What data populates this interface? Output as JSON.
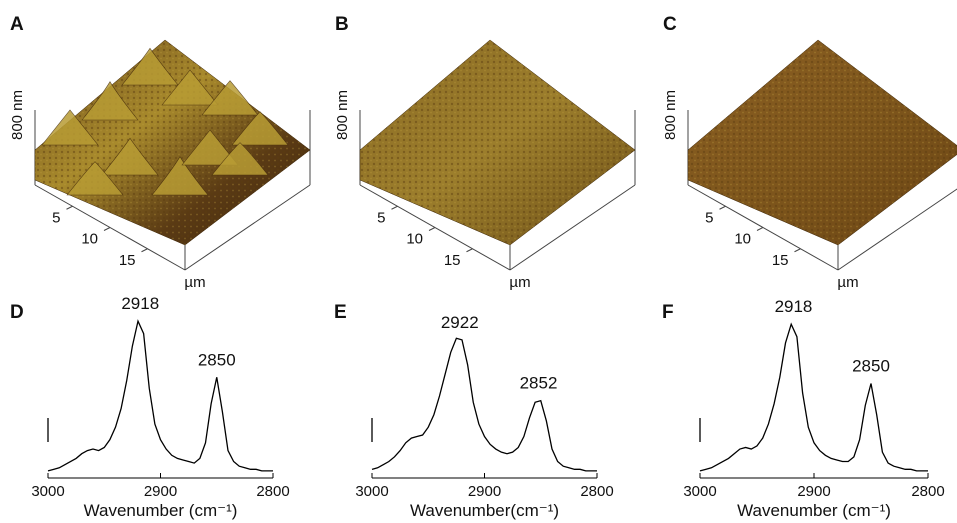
{
  "panels": [
    {
      "label": "A",
      "z_label": "800 nm",
      "axis_ticks": [
        5,
        10,
        15
      ],
      "axis_unit": "µm"
    },
    {
      "label": "B",
      "z_label": "800 nm",
      "axis_ticks": [
        5,
        10,
        15
      ],
      "axis_unit": "µm"
    },
    {
      "label": "C",
      "z_label": "800 nm",
      "axis_ticks": [
        5,
        10,
        15
      ],
      "axis_unit": "µm"
    }
  ],
  "chart_data": [
    {
      "type": "line",
      "label": "D",
      "x_label": "Wavenumber (cm⁻¹)",
      "color": "#000000",
      "xlim": [
        3000,
        2800
      ],
      "xticks": [
        3000,
        2900,
        2800
      ],
      "ylim": [
        0,
        1
      ],
      "x": [
        3000,
        2995,
        2990,
        2985,
        2980,
        2975,
        2970,
        2965,
        2960,
        2955,
        2950,
        2945,
        2940,
        2935,
        2930,
        2925,
        2920,
        2915,
        2910,
        2905,
        2900,
        2895,
        2890,
        2885,
        2880,
        2875,
        2870,
        2865,
        2860,
        2855,
        2850,
        2845,
        2840,
        2835,
        2830,
        2825,
        2820,
        2815,
        2810,
        2805,
        2800
      ],
      "values": [
        0.02,
        0.03,
        0.04,
        0.06,
        0.08,
        0.1,
        0.13,
        0.15,
        0.16,
        0.15,
        0.17,
        0.22,
        0.3,
        0.42,
        0.6,
        0.82,
        0.98,
        0.9,
        0.55,
        0.32,
        0.22,
        0.16,
        0.12,
        0.1,
        0.09,
        0.08,
        0.07,
        0.1,
        0.2,
        0.45,
        0.62,
        0.4,
        0.15,
        0.08,
        0.05,
        0.04,
        0.03,
        0.03,
        0.02,
        0.02,
        0.02
      ],
      "annotations": [
        {
          "x": 2918,
          "text": "2918"
        },
        {
          "x": 2850,
          "text": "2850"
        }
      ]
    },
    {
      "type": "line",
      "label": "E",
      "x_label": "Wavenumber(cm⁻¹)",
      "color": "#000000",
      "xlim": [
        3000,
        2800
      ],
      "xticks": [
        3000,
        2900,
        2800
      ],
      "ylim": [
        0,
        1
      ],
      "x": [
        3000,
        2995,
        2990,
        2985,
        2980,
        2975,
        2970,
        2965,
        2960,
        2955,
        2950,
        2945,
        2940,
        2935,
        2930,
        2925,
        2920,
        2915,
        2910,
        2905,
        2900,
        2895,
        2890,
        2885,
        2880,
        2875,
        2870,
        2865,
        2860,
        2855,
        2850,
        2845,
        2840,
        2835,
        2830,
        2825,
        2820,
        2815,
        2810,
        2805,
        2800
      ],
      "values": [
        0.03,
        0.04,
        0.06,
        0.08,
        0.11,
        0.15,
        0.2,
        0.23,
        0.24,
        0.25,
        0.3,
        0.38,
        0.5,
        0.64,
        0.78,
        0.87,
        0.86,
        0.7,
        0.46,
        0.32,
        0.24,
        0.19,
        0.16,
        0.14,
        0.13,
        0.14,
        0.17,
        0.24,
        0.36,
        0.46,
        0.47,
        0.34,
        0.16,
        0.08,
        0.05,
        0.04,
        0.03,
        0.03,
        0.02,
        0.02,
        0.02
      ],
      "annotations": [
        {
          "x": 2922,
          "text": "2922"
        },
        {
          "x": 2852,
          "text": "2852"
        }
      ]
    },
    {
      "type": "line",
      "label": "F",
      "x_label": "Wavenumber (cm⁻¹)",
      "color": "#000000",
      "xlim": [
        3000,
        2800
      ],
      "xticks": [
        3000,
        2900,
        2800
      ],
      "ylim": [
        0,
        1
      ],
      "x": [
        3000,
        2995,
        2990,
        2985,
        2980,
        2975,
        2970,
        2965,
        2960,
        2955,
        2950,
        2945,
        2940,
        2935,
        2930,
        2925,
        2920,
        2915,
        2910,
        2905,
        2900,
        2895,
        2890,
        2885,
        2880,
        2875,
        2870,
        2865,
        2860,
        2855,
        2850,
        2845,
        2840,
        2835,
        2830,
        2825,
        2820,
        2815,
        2810,
        2805,
        2800
      ],
      "values": [
        0.02,
        0.03,
        0.04,
        0.06,
        0.08,
        0.1,
        0.13,
        0.16,
        0.17,
        0.16,
        0.18,
        0.23,
        0.32,
        0.45,
        0.62,
        0.84,
        0.96,
        0.88,
        0.52,
        0.3,
        0.2,
        0.15,
        0.12,
        0.1,
        0.09,
        0.08,
        0.08,
        0.11,
        0.22,
        0.44,
        0.58,
        0.38,
        0.14,
        0.07,
        0.05,
        0.04,
        0.03,
        0.03,
        0.02,
        0.02,
        0.02
      ],
      "annotations": [
        {
          "x": 2918,
          "text": "2918"
        },
        {
          "x": 2850,
          "text": "2850"
        }
      ]
    }
  ]
}
